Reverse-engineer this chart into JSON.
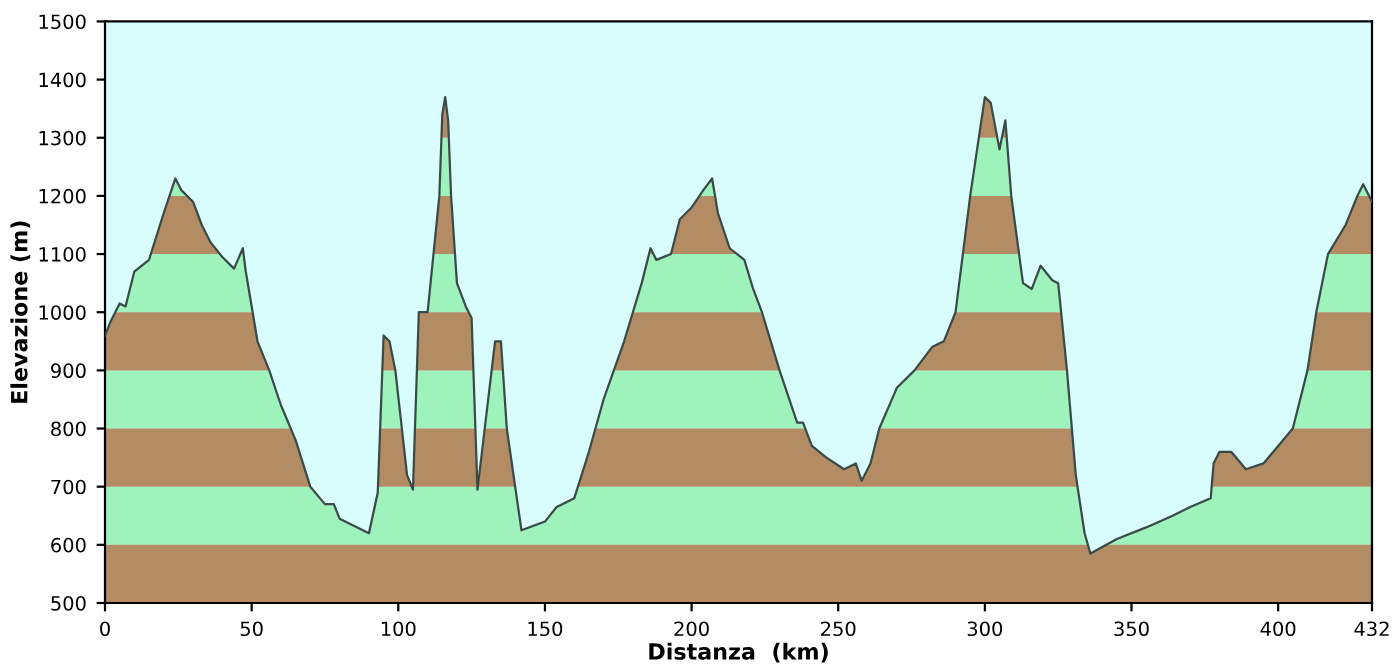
{
  "chart_data": {
    "type": "area",
    "xlabel": "Distanza  (km)",
    "ylabel": "Elevazione (m)",
    "x": [
      0,
      2,
      5,
      7,
      10,
      15,
      20,
      24,
      26,
      30,
      33,
      36,
      40,
      44,
      47,
      48,
      52,
      56,
      60,
      65,
      70,
      75,
      78,
      80,
      90,
      93,
      95,
      97,
      99,
      103,
      105,
      107,
      110,
      114,
      115,
      116,
      117,
      118,
      120,
      123,
      125,
      127,
      133,
      135,
      137,
      142,
      150,
      154,
      160,
      165,
      170,
      177,
      183,
      186,
      188,
      193,
      196,
      200,
      204,
      207,
      209,
      213,
      218,
      221,
      224,
      230,
      236,
      238,
      241,
      246,
      252,
      256,
      258,
      261,
      264,
      270,
      276,
      282,
      286,
      290,
      295,
      300,
      302,
      305,
      307,
      309,
      313,
      316,
      319,
      323,
      325,
      328,
      331,
      334,
      336,
      345,
      355,
      364,
      370,
      377,
      378,
      380,
      384,
      389,
      395,
      400,
      405,
      410,
      413,
      417,
      423,
      427,
      429,
      432
    ],
    "series": [
      {
        "color": "#b48c64",
        "values": [
          960,
          985,
          1015,
          1010,
          1070,
          1090,
          1170,
          1230,
          1210,
          1190,
          1150,
          1120,
          1095,
          1075,
          1110,
          1070,
          950,
          900,
          840,
          780,
          700,
          670,
          670,
          645,
          620,
          690,
          960,
          950,
          900,
          720,
          695,
          1000,
          1000,
          1200,
          1340,
          1370,
          1330,
          1200,
          1050,
          1010,
          990,
          695,
          950,
          950,
          800,
          625,
          640,
          665,
          680,
          760,
          850,
          950,
          1050,
          1110,
          1090,
          1100,
          1160,
          1180,
          1210,
          1230,
          1170,
          1110,
          1090,
          1040,
          1000,
          900,
          810,
          810,
          770,
          750,
          730,
          740,
          710,
          740,
          800,
          870,
          900,
          940,
          950,
          1000,
          1200,
          1370,
          1360,
          1280,
          1330,
          1200,
          1050,
          1040,
          1080,
          1055,
          1050,
          900,
          720,
          620,
          585,
          610,
          630,
          650,
          665,
          680,
          740,
          760,
          760,
          730,
          740,
          770,
          800,
          900,
          1000,
          1100,
          1150,
          1200,
          1220,
          1190
        ]
      }
    ],
    "bands": [
      {
        "axis": "y",
        "from": 600,
        "to": 700,
        "color": "#9ef2bc"
      },
      {
        "axis": "y",
        "from": 800,
        "to": 900,
        "color": "#9ef2bc"
      },
      {
        "axis": "y",
        "from": 1000,
        "to": 1100,
        "color": "#9ef2bc"
      },
      {
        "axis": "y",
        "from": 1200,
        "to": 1300,
        "color": "#9ef2bc"
      }
    ],
    "xlim": [
      0,
      432
    ],
    "xticks": [
      0,
      50,
      100,
      150,
      200,
      250,
      300,
      350,
      400,
      432
    ],
    "ylim": [
      500,
      1500
    ],
    "yticks": [
      500,
      600,
      700,
      800,
      900,
      1000,
      1100,
      1200,
      1300,
      1400,
      1500
    ],
    "grid": false,
    "legend": false
  }
}
